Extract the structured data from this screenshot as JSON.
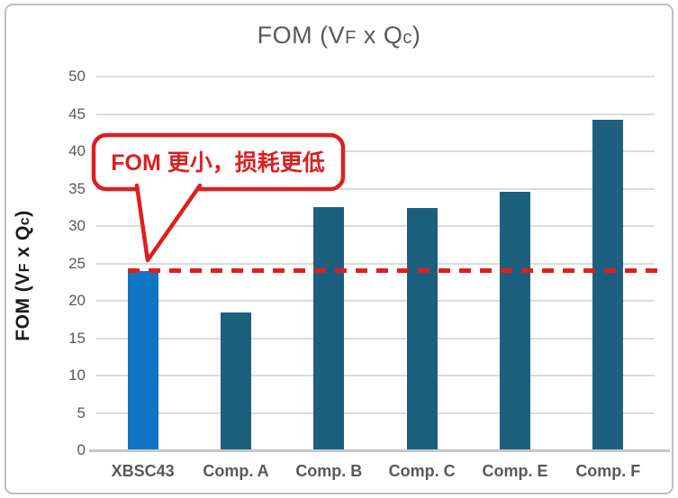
{
  "title": {
    "full": "FOM (VF x Qc)",
    "parts": {
      "p1": "FOM (V",
      "s1": "F",
      "p2": " x Q",
      "s2": "c",
      "p3": ")"
    }
  },
  "y_axis_title": {
    "full": "FOM (VF x Qc)",
    "parts": {
      "p1": "FOM (V",
      "s1": "F",
      "p2": " x Q",
      "s2": "c",
      "p3": ")"
    }
  },
  "chart_data": {
    "type": "bar",
    "title": "FOM (VF x Qc)",
    "categories": [
      "XBSC43",
      "Comp. A",
      "Comp. B",
      "Comp. C",
      "Comp. E",
      "Comp. F"
    ],
    "values": [
      24,
      18.4,
      32.5,
      32.4,
      34.6,
      44.2
    ],
    "xlabel": "",
    "ylabel": "FOM (VF x Qc)",
    "ylim": [
      0,
      50
    ],
    "yticks": [
      0,
      5,
      10,
      15,
      20,
      25,
      30,
      35,
      40,
      45,
      50
    ],
    "grid": "horizontal",
    "legend": "none",
    "bar_colors": {
      "highlight_index": 0,
      "highlight": "#0F76C6",
      "default": "#1D5F7E"
    },
    "reference_line": {
      "value": 24,
      "style": "dashed",
      "color": "#DE1F1F"
    }
  },
  "annotation": {
    "text": "FOM 更小，损耗更低",
    "color": "#DE1F1F"
  },
  "colors": {
    "title_text": "#595959",
    "axis_labels": "#595959",
    "gridline": "#DBDBDB",
    "axis_line": "#C6C6C6",
    "frame_border": "#BFBFBF"
  }
}
